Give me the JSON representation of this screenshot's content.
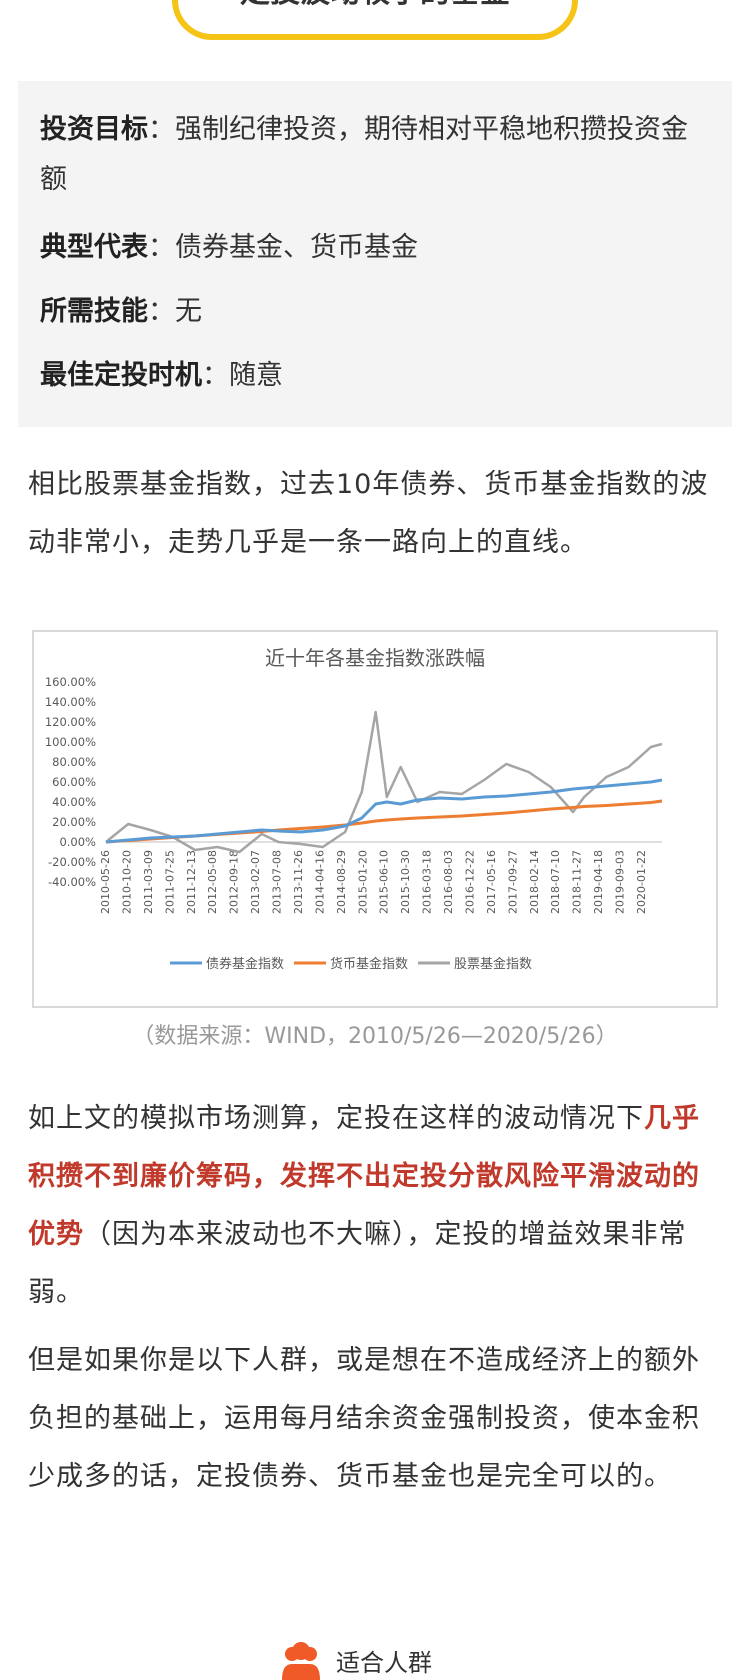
{
  "header": {
    "title": "定投波动较小的基金"
  },
  "info_card": {
    "rows": [
      {
        "label": "投资目标",
        "value": "：强制纪律投资，期待相对平稳地积攒投资金额"
      },
      {
        "label": "典型代表",
        "value": "：债券基金、货币基金"
      },
      {
        "label": "所需技能",
        "value": "：无"
      },
      {
        "label": "最佳定投时机",
        "value": "：随意"
      }
    ]
  },
  "paragraphs": {
    "p1": "相比股票基金指数，过去10年债券、货币基金指数的波动非常小，走势几乎是一条一路向上的直线。",
    "p2_pre": "如上文的模拟市场测算，定投在这样的波动情况下",
    "p2_hl": "几乎积攒不到廉价筹码，发挥不出定投分散风险平滑波动的优势",
    "p2_post": "（因为本来波动也不大嘛），定投的增益效果非常弱。",
    "p3": "但是如果你是以下人群，或是想在不造成经济上的额外负担的基础上，运用每月结余资金强制投资，使本金积少成多的话，定投债券、货币基金也是完全可以的。"
  },
  "caption": "（数据来源：WIND，2010/5/26—2020/5/26）",
  "footer": {
    "label": "适合人群",
    "icon": "people-icon",
    "icon_color": "#f05a28"
  },
  "chart_data": {
    "type": "line",
    "title": "近十年各基金指数涨跌幅",
    "xlabel": "",
    "ylabel": "",
    "ylim": [
      -40,
      160
    ],
    "yticks": [
      "160.00%",
      "140.00%",
      "120.00%",
      "100.00%",
      "80.00%",
      "60.00%",
      "40.00%",
      "20.00%",
      "0.00%",
      "-20.00%",
      "-40.00%"
    ],
    "x_tick_labels": [
      "2010-05-26",
      "2010-10-20",
      "2011-03-09",
      "2011-07-25",
      "2011-12-13",
      "2012-05-08",
      "2012-09-18",
      "2013-02-07",
      "2013-07-08",
      "2013-11-26",
      "2014-04-16",
      "2014-08-29",
      "2015-01-20",
      "2015-06-10",
      "2015-10-30",
      "2016-03-18",
      "2016-08-03",
      "2016-12-22",
      "2017-05-16",
      "2017-09-27",
      "2018-02-14",
      "2018-07-10",
      "2018-11-27",
      "2019-04-18",
      "2019-09-03",
      "2020-01-22"
    ],
    "legend_position": "bottom",
    "x": [
      2010.4,
      2010.8,
      2011.2,
      2011.6,
      2012.0,
      2012.4,
      2012.8,
      2013.2,
      2013.5,
      2013.9,
      2014.3,
      2014.7,
      2015.0,
      2015.25,
      2015.45,
      2015.7,
      2016.0,
      2016.4,
      2016.8,
      2017.2,
      2017.6,
      2018.0,
      2018.4,
      2018.8,
      2019.0,
      2019.4,
      2019.8,
      2020.2,
      2020.4
    ],
    "series": [
      {
        "name": "债券基金指数",
        "color": "#5b9bd5",
        "values": [
          0,
          2,
          4,
          5,
          6,
          8,
          10,
          12,
          11,
          10,
          12,
          16,
          24,
          38,
          40,
          38,
          42,
          44,
          43,
          45,
          46,
          48,
          50,
          53,
          54,
          56,
          58,
          60,
          62
        ]
      },
      {
        "name": "货币基金指数",
        "color": "#ed7d31",
        "values": [
          0,
          1.5,
          3,
          4.5,
          6,
          7.5,
          9,
          10.5,
          12,
          13.5,
          15,
          17,
          19,
          21,
          22,
          23,
          24,
          25,
          26,
          27.5,
          29,
          31,
          33,
          34.5,
          35.5,
          36.5,
          38,
          39.5,
          41
        ]
      },
      {
        "name": "股票基金指数",
        "color": "#a5a5a5",
        "values": [
          0,
          18,
          12,
          5,
          -8,
          -5,
          -10,
          8,
          0,
          -2,
          -5,
          10,
          50,
          130,
          45,
          75,
          40,
          50,
          48,
          62,
          78,
          70,
          55,
          30,
          45,
          65,
          75,
          95,
          98
        ]
      }
    ]
  }
}
